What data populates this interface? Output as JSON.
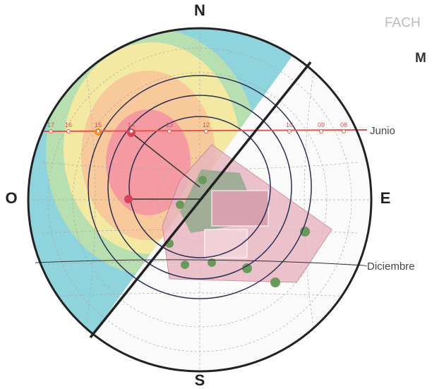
{
  "header": {
    "title": "FACH",
    "subtitle": "M"
  },
  "compass": {
    "n": "N",
    "s": "S",
    "o": "O",
    "e": "E"
  },
  "lines": {
    "junio": "Junio",
    "diciembre": "Diciembre"
  },
  "hours": [
    "17",
    "16",
    "15",
    "14",
    "13",
    "12",
    "10",
    "09",
    "08"
  ]
}
